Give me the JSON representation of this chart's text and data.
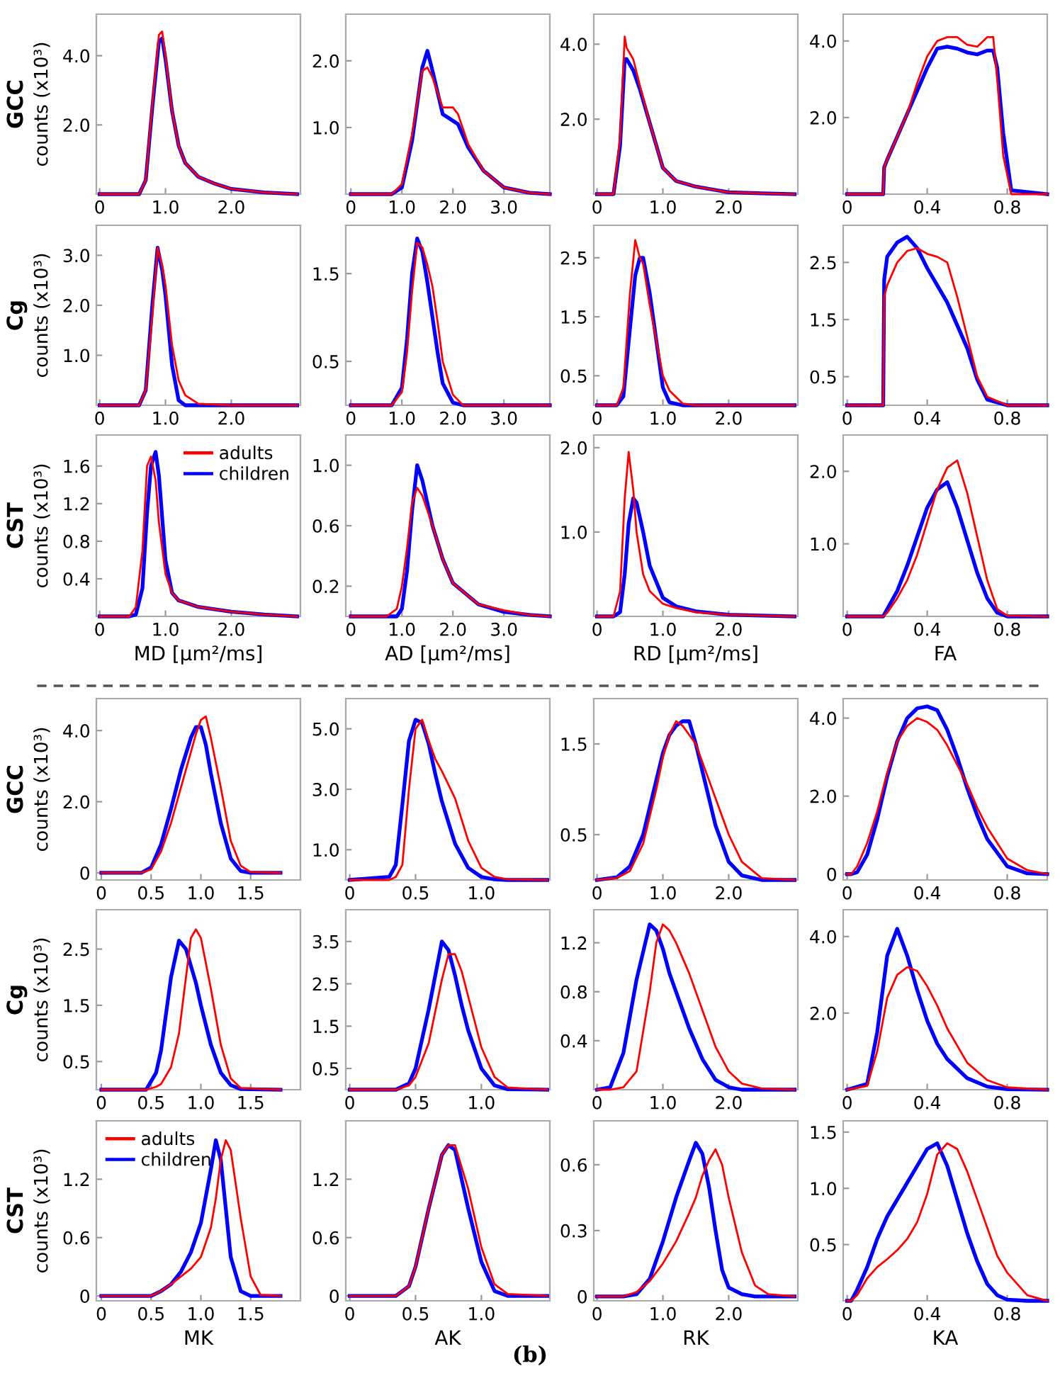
{
  "chart_data": [
    {
      "type": "line",
      "title": "GCC",
      "ylabel": "counts (x10³)",
      "x": [
        0,
        0.6,
        0.7,
        0.8,
        0.9,
        0.95,
        1.0,
        1.1,
        1.2,
        1.3,
        1.5,
        1.75,
        2.0,
        2.5,
        3.0
      ],
      "series": [
        {
          "color": "#ff0000",
          "values": [
            0,
            0,
            0.4,
            2.6,
            4.6,
            4.7,
            4.0,
            2.4,
            1.4,
            0.9,
            0.5,
            0.3,
            0.15,
            0.05,
            0
          ]
        },
        {
          "color": "#0000ff",
          "values": [
            0,
            0,
            0.4,
            2.5,
            4.4,
            4.5,
            3.9,
            2.4,
            1.4,
            0.9,
            0.5,
            0.3,
            0.15,
            0.05,
            0
          ]
        }
      ],
      "xlim": [
        -0.05,
        3.05
      ],
      "ylim": [
        0,
        5.2
      ],
      "xticks": [
        0,
        {
          "value": 1,
          "label": "1.0"
        },
        {
          "value": 2,
          "label": "2.0"
        }
      ],
      "yticks": [
        {
          "value": 2,
          "label": "2.0"
        },
        {
          "value": 4,
          "label": "4.0"
        }
      ]
    },
    {
      "type": "line",
      "x": [
        0,
        0.8,
        1.0,
        1.2,
        1.4,
        1.5,
        1.6,
        1.8,
        1.9,
        2.0,
        2.1,
        2.3,
        2.6,
        3.0,
        3.5,
        3.9
      ],
      "series": [
        {
          "color": "#ff0000",
          "values": [
            0,
            0,
            0.15,
            0.9,
            1.85,
            1.9,
            1.75,
            1.3,
            1.3,
            1.3,
            1.2,
            0.75,
            0.35,
            0.1,
            0.02,
            0
          ]
        },
        {
          "color": "#0000ff",
          "values": [
            0,
            0,
            0.1,
            0.8,
            1.9,
            2.15,
            1.85,
            1.2,
            1.15,
            1.1,
            1.05,
            0.7,
            0.35,
            0.1,
            0.02,
            0
          ]
        }
      ],
      "xlim": [
        -0.1,
        3.9
      ],
      "ylim": [
        0,
        2.7
      ],
      "xticks": [
        0,
        {
          "value": 1,
          "label": "1.0"
        },
        {
          "value": 2,
          "label": "2.0"
        },
        {
          "value": 3,
          "label": "3.0"
        }
      ],
      "yticks": [
        {
          "value": 1,
          "label": "1.0"
        },
        {
          "value": 2,
          "label": "2.0"
        }
      ]
    },
    {
      "type": "line",
      "x": [
        0,
        0.25,
        0.35,
        0.42,
        0.45,
        0.55,
        0.65,
        0.8,
        1.0,
        1.2,
        1.5,
        2.0,
        2.5,
        3.0
      ],
      "series": [
        {
          "color": "#ff0000",
          "values": [
            0,
            0,
            1.5,
            4.2,
            3.9,
            3.6,
            2.9,
            1.9,
            0.7,
            0.35,
            0.2,
            0.05,
            0.02,
            0
          ]
        },
        {
          "color": "#0000ff",
          "values": [
            0,
            0,
            1.3,
            3.6,
            3.6,
            3.3,
            2.8,
            1.9,
            0.7,
            0.35,
            0.2,
            0.05,
            0.02,
            0
          ]
        }
      ],
      "xlim": [
        -0.05,
        3.05
      ],
      "ylim": [
        0,
        4.8
      ],
      "xticks": [
        0,
        {
          "value": 1,
          "label": "1.0"
        },
        {
          "value": 2,
          "label": "2.0"
        }
      ],
      "yticks": [
        {
          "value": 2,
          "label": "2.0"
        },
        {
          "value": 4,
          "label": "4.0"
        }
      ]
    },
    {
      "type": "line",
      "x": [
        0,
        0.18,
        0.185,
        0.2,
        0.25,
        0.3,
        0.35,
        0.4,
        0.45,
        0.5,
        0.55,
        0.6,
        0.65,
        0.7,
        0.73,
        0.75,
        0.78,
        0.82,
        1.0
      ],
      "series": [
        {
          "color": "#ff0000",
          "values": [
            0,
            0,
            0.7,
            0.9,
            1.5,
            2.1,
            2.9,
            3.6,
            4.0,
            4.1,
            4.1,
            3.9,
            3.85,
            4.1,
            4.1,
            3.0,
            1.0,
            0,
            0
          ]
        },
        {
          "color": "#0000ff",
          "values": [
            0,
            0,
            0.7,
            0.9,
            1.5,
            2.1,
            2.7,
            3.3,
            3.8,
            3.85,
            3.8,
            3.7,
            3.65,
            3.75,
            3.75,
            3.3,
            1.6,
            0.1,
            0
          ]
        }
      ],
      "xlim": [
        -0.02,
        1.0
      ],
      "ylim": [
        0,
        4.7
      ],
      "xticks": [
        0,
        0.4,
        0.8
      ],
      "yticks": [
        {
          "value": 2,
          "label": "2.0"
        },
        {
          "value": 4,
          "label": "4.0"
        }
      ]
    },
    {
      "type": "line",
      "title": "Cg",
      "ylabel": "counts (x10³)",
      "x": [
        0,
        0.6,
        0.7,
        0.8,
        0.88,
        0.95,
        1.0,
        1.1,
        1.2,
        1.3,
        1.5,
        2.0,
        3.0
      ],
      "series": [
        {
          "color": "#ff0000",
          "values": [
            0,
            0,
            0.3,
            1.8,
            3.15,
            2.8,
            2.4,
            1.2,
            0.5,
            0.2,
            0.03,
            0,
            0
          ]
        },
        {
          "color": "#0000ff",
          "values": [
            0,
            0,
            0.3,
            2.0,
            3.15,
            2.7,
            2.2,
            0.8,
            0.1,
            0,
            0,
            0,
            0
          ]
        }
      ],
      "xlim": [
        -0.05,
        3.05
      ],
      "ylim": [
        0,
        3.6
      ],
      "xticks": [
        0,
        {
          "value": 1,
          "label": "1.0"
        },
        {
          "value": 2,
          "label": "2.0"
        }
      ],
      "yticks": [
        {
          "value": 1,
          "label": "1.0"
        },
        {
          "value": 2,
          "label": "2.0"
        },
        {
          "value": 3,
          "label": "3.0"
        }
      ]
    },
    {
      "type": "line",
      "x": [
        0,
        0.8,
        1.0,
        1.1,
        1.2,
        1.3,
        1.4,
        1.5,
        1.6,
        1.7,
        1.8,
        2.0,
        2.2,
        3.9
      ],
      "series": [
        {
          "color": "#ff0000",
          "values": [
            0,
            0,
            0.15,
            0.6,
            1.3,
            1.85,
            1.8,
            1.6,
            1.35,
            0.95,
            0.5,
            0.12,
            0,
            0
          ]
        },
        {
          "color": "#0000ff",
          "values": [
            0,
            0,
            0.2,
            0.75,
            1.5,
            1.9,
            1.75,
            1.4,
            1.0,
            0.6,
            0.25,
            0.03,
            0,
            0
          ]
        }
      ],
      "xlim": [
        -0.1,
        3.9
      ],
      "ylim": [
        0,
        2.05
      ],
      "xticks": [
        0,
        {
          "value": 1,
          "label": "1.0"
        },
        {
          "value": 2,
          "label": "2.0"
        },
        {
          "value": 3,
          "label": "3.0"
        }
      ],
      "yticks": [
        0.5,
        1.5
      ]
    },
    {
      "type": "line",
      "x": [
        0,
        0.3,
        0.4,
        0.5,
        0.58,
        0.65,
        0.7,
        0.8,
        0.9,
        1.0,
        1.1,
        1.3,
        1.5,
        3.0
      ],
      "series": [
        {
          "color": "#ff0000",
          "values": [
            0,
            0,
            0.3,
            1.9,
            2.8,
            2.5,
            2.4,
            1.7,
            1.1,
            0.5,
            0.25,
            0.03,
            0,
            0
          ]
        },
        {
          "color": "#0000ff",
          "values": [
            0,
            0,
            0.15,
            1.3,
            2.2,
            2.5,
            2.5,
            1.9,
            1.1,
            0.3,
            0.05,
            0,
            0,
            0
          ]
        }
      ],
      "xlim": [
        -0.05,
        3.05
      ],
      "ylim": [
        0,
        3.05
      ],
      "xticks": [
        0,
        {
          "value": 1,
          "label": "1.0"
        },
        {
          "value": 2,
          "label": "2.0"
        }
      ],
      "yticks": [
        0.5,
        1.5,
        2.5
      ]
    },
    {
      "type": "line",
      "x": [
        0,
        0.18,
        0.185,
        0.2,
        0.25,
        0.3,
        0.35,
        0.4,
        0.45,
        0.5,
        0.55,
        0.6,
        0.65,
        0.7,
        0.8,
        1.0
      ],
      "series": [
        {
          "color": "#ff0000",
          "values": [
            0,
            0,
            1.9,
            2.1,
            2.5,
            2.7,
            2.75,
            2.65,
            2.6,
            2.5,
            1.9,
            1.2,
            0.5,
            0.15,
            0,
            0
          ]
        },
        {
          "color": "#0000ff",
          "values": [
            0,
            0,
            2.2,
            2.6,
            2.85,
            2.95,
            2.75,
            2.4,
            2.1,
            1.8,
            1.4,
            1.0,
            0.45,
            0.1,
            0,
            0
          ]
        }
      ],
      "xlim": [
        -0.02,
        1.0
      ],
      "ylim": [
        0,
        3.15
      ],
      "xticks": [
        0,
        0.4,
        0.8
      ],
      "yticks": [
        0.5,
        1.5,
        2.5
      ]
    },
    {
      "type": "line",
      "title": "CST",
      "ylabel": "counts (x10³)",
      "xlabel": "MD [µm²/ms]",
      "legend": "top right",
      "x": [
        0,
        0.45,
        0.55,
        0.65,
        0.72,
        0.78,
        0.85,
        0.9,
        1.0,
        1.1,
        1.2,
        1.5,
        2.0,
        2.5,
        3.0
      ],
      "series": [
        {
          "name": "adults",
          "color": "#ff0000",
          "values": [
            0,
            0,
            0.1,
            0.7,
            1.6,
            1.7,
            1.45,
            1.0,
            0.45,
            0.25,
            0.17,
            0.1,
            0.05,
            0.02,
            0
          ]
        },
        {
          "name": "children",
          "color": "#0000ff",
          "values": [
            0,
            0,
            0.02,
            0.3,
            1.1,
            1.6,
            1.75,
            1.5,
            0.6,
            0.25,
            0.17,
            0.1,
            0.05,
            0.02,
            0
          ]
        }
      ],
      "xlim": [
        -0.05,
        3.05
      ],
      "ylim": [
        0,
        1.93
      ],
      "xticks": [
        0,
        {
          "value": 1,
          "label": "1.0"
        },
        {
          "value": 2,
          "label": "2.0"
        }
      ],
      "yticks": [
        0.4,
        0.8,
        1.2,
        1.6
      ]
    },
    {
      "type": "line",
      "xlabel": "AD [µm²/ms]",
      "x": [
        0,
        0.7,
        0.9,
        1.0,
        1.1,
        1.2,
        1.3,
        1.4,
        1.5,
        1.6,
        1.8,
        2.0,
        2.5,
        3.0,
        3.5,
        3.9
      ],
      "series": [
        {
          "color": "#ff0000",
          "values": [
            0,
            0,
            0.05,
            0.2,
            0.45,
            0.75,
            0.85,
            0.8,
            0.7,
            0.6,
            0.38,
            0.22,
            0.08,
            0.04,
            0.01,
            0
          ]
        },
        {
          "color": "#0000ff",
          "values": [
            0,
            0,
            0,
            0.05,
            0.3,
            0.7,
            1.0,
            0.9,
            0.75,
            0.6,
            0.38,
            0.22,
            0.08,
            0.03,
            0.01,
            0
          ]
        }
      ],
      "xlim": [
        -0.1,
        3.9
      ],
      "ylim": [
        0,
        1.2
      ],
      "xticks": [
        0,
        {
          "value": 1,
          "label": "1.0"
        },
        {
          "value": 2,
          "label": "2.0"
        },
        {
          "value": 3,
          "label": "3.0"
        }
      ],
      "yticks": [
        0.2,
        0.6,
        {
          "value": 1,
          "label": "1.0"
        }
      ]
    },
    {
      "type": "line",
      "xlabel": "RD [µm²/ms]",
      "x": [
        0,
        0.25,
        0.35,
        0.42,
        0.48,
        0.55,
        0.6,
        0.7,
        0.8,
        1.0,
        1.2,
        1.5,
        2.0,
        2.5,
        3.0
      ],
      "series": [
        {
          "color": "#ff0000",
          "values": [
            0,
            0,
            0.3,
            1.4,
            1.95,
            1.5,
            1.0,
            0.5,
            0.3,
            0.15,
            0.1,
            0.05,
            0.02,
            0.01,
            0
          ]
        },
        {
          "color": "#0000ff",
          "values": [
            0,
            0,
            0.05,
            0.5,
            1.1,
            1.4,
            1.35,
            1.0,
            0.6,
            0.22,
            0.12,
            0.06,
            0.02,
            0.01,
            0
          ]
        }
      ],
      "xlim": [
        -0.05,
        3.05
      ],
      "ylim": [
        0,
        2.15
      ],
      "xticks": [
        0,
        {
          "value": 1,
          "label": "1.0"
        },
        {
          "value": 2,
          "label": "2.0"
        }
      ],
      "yticks": [
        {
          "value": 1,
          "label": "1.0"
        },
        {
          "value": 2,
          "label": "2.0"
        }
      ]
    },
    {
      "type": "line",
      "xlabel": "FA",
      "x": [
        0,
        0.18,
        0.2,
        0.25,
        0.3,
        0.35,
        0.4,
        0.45,
        0.5,
        0.55,
        0.6,
        0.65,
        0.7,
        0.75,
        0.8,
        1.0
      ],
      "series": [
        {
          "color": "#ff0000",
          "values": [
            0,
            0,
            0.05,
            0.25,
            0.5,
            0.85,
            1.3,
            1.75,
            2.05,
            2.15,
            1.7,
            1.1,
            0.5,
            0.1,
            0.01,
            0
          ]
        },
        {
          "color": "#0000ff",
          "values": [
            0,
            0,
            0.1,
            0.35,
            0.7,
            1.1,
            1.5,
            1.75,
            1.85,
            1.5,
            1.05,
            0.6,
            0.25,
            0.05,
            0,
            0
          ]
        }
      ],
      "xlim": [
        -0.02,
        1.0
      ],
      "ylim": [
        0,
        2.5
      ],
      "xticks": [
        0,
        0.4,
        0.8
      ],
      "yticks": [
        {
          "value": 1,
          "label": "1.0"
        },
        {
          "value": 2,
          "label": "2.0"
        }
      ]
    },
    {
      "type": "line",
      "title": "GCC",
      "ylabel": "counts (x10³)",
      "x": [
        0,
        0.4,
        0.5,
        0.6,
        0.7,
        0.8,
        0.9,
        0.95,
        1.0,
        1.05,
        1.1,
        1.2,
        1.3,
        1.4,
        1.5,
        1.8
      ],
      "series": [
        {
          "color": "#ff0000",
          "values": [
            0,
            0,
            0.1,
            0.6,
            1.4,
            2.4,
            3.4,
            3.9,
            4.3,
            4.4,
            3.8,
            2.4,
            0.9,
            0.2,
            0.02,
            0
          ]
        },
        {
          "color": "#0000ff",
          "values": [
            0,
            0,
            0.15,
            0.8,
            1.8,
            2.9,
            3.8,
            4.1,
            4.1,
            3.6,
            2.8,
            1.4,
            0.4,
            0.05,
            0,
            0
          ]
        }
      ],
      "xlim": [
        -0.05,
        2.0
      ],
      "ylim": [
        -0.2,
        4.9
      ],
      "xticks": [
        0,
        0.5,
        {
          "value": 1,
          "label": "1.0"
        },
        1.5
      ],
      "yticks": [
        0,
        {
          "value": 2,
          "label": "2.0"
        },
        {
          "value": 4,
          "label": "4.0"
        }
      ]
    },
    {
      "type": "line",
      "x": [
        0,
        0.3,
        0.35,
        0.4,
        0.45,
        0.5,
        0.55,
        0.6,
        0.65,
        0.7,
        0.8,
        0.9,
        1.0,
        1.1,
        1.2,
        1.5
      ],
      "series": [
        {
          "color": "#ff0000",
          "values": [
            0,
            0,
            0.1,
            0.5,
            3.0,
            5.0,
            5.3,
            4.6,
            4.0,
            3.6,
            2.7,
            1.3,
            0.4,
            0.1,
            0.02,
            0
          ]
        },
        {
          "color": "#0000ff",
          "values": [
            0,
            0.1,
            0.5,
            2.5,
            4.6,
            5.3,
            5.2,
            4.5,
            3.5,
            2.6,
            1.2,
            0.4,
            0.1,
            0.02,
            0,
            0
          ]
        }
      ],
      "xlim": [
        -0.03,
        1.52
      ],
      "ylim": [
        0,
        6.0
      ],
      "xticks": [
        0,
        0.5,
        {
          "value": 1,
          "label": "1.0"
        }
      ],
      "yticks": [
        {
          "value": 1,
          "label": "1.0"
        },
        {
          "value": 3,
          "label": "3.0"
        },
        {
          "value": 5,
          "label": "5.0"
        }
      ]
    },
    {
      "type": "line",
      "x": [
        0,
        0.3,
        0.5,
        0.7,
        0.9,
        1.0,
        1.1,
        1.2,
        1.3,
        1.4,
        1.5,
        1.6,
        1.8,
        2.0,
        2.2,
        2.5,
        3.0
      ],
      "series": [
        {
          "color": "#ff0000",
          "values": [
            0,
            0.02,
            0.1,
            0.4,
            1.0,
            1.35,
            1.6,
            1.75,
            1.7,
            1.6,
            1.5,
            1.3,
            0.9,
            0.5,
            0.2,
            0.02,
            0
          ]
        },
        {
          "color": "#0000ff",
          "values": [
            0,
            0.03,
            0.15,
            0.5,
            1.1,
            1.4,
            1.6,
            1.7,
            1.75,
            1.75,
            1.5,
            1.2,
            0.6,
            0.2,
            0.05,
            0,
            0
          ]
        }
      ],
      "xlim": [
        -0.05,
        3.05
      ],
      "ylim": [
        0,
        2.0
      ],
      "xticks": [
        0,
        {
          "value": 1,
          "label": "1.0"
        },
        {
          "value": 2,
          "label": "2.0"
        }
      ],
      "yticks": [
        0.5,
        1.5
      ]
    },
    {
      "type": "line",
      "x": [
        0,
        0.02,
        0.05,
        0.1,
        0.15,
        0.2,
        0.25,
        0.3,
        0.35,
        0.4,
        0.45,
        0.5,
        0.55,
        0.6,
        0.65,
        0.7,
        0.8,
        0.9,
        1.0
      ],
      "series": [
        {
          "color": "#ff0000",
          "values": [
            0,
            0,
            0.2,
            0.8,
            1.6,
            2.6,
            3.4,
            3.8,
            4.0,
            3.9,
            3.7,
            3.3,
            2.8,
            2.3,
            1.7,
            1.2,
            0.4,
            0.1,
            0
          ]
        },
        {
          "color": "#0000ff",
          "values": [
            0,
            0,
            0.05,
            0.5,
            1.4,
            2.5,
            3.4,
            4.0,
            4.25,
            4.3,
            4.2,
            3.7,
            3.0,
            2.2,
            1.5,
            0.9,
            0.2,
            0.02,
            0
          ]
        }
      ],
      "xlim": [
        -0.02,
        1.0
      ],
      "ylim": [
        -0.15,
        4.5
      ],
      "xticks": [
        0,
        0.4,
        0.8
      ],
      "yticks": [
        0,
        {
          "value": 2,
          "label": "2.0"
        },
        {
          "value": 4,
          "label": "4.0"
        }
      ]
    },
    {
      "type": "line",
      "title": "Cg",
      "ylabel": "counts (x10³)",
      "x": [
        0,
        0.45,
        0.55,
        0.6,
        0.7,
        0.78,
        0.85,
        0.9,
        0.95,
        1.0,
        1.1,
        1.2,
        1.3,
        1.4,
        1.8
      ],
      "series": [
        {
          "color": "#ff0000",
          "values": [
            0,
            0,
            0.05,
            0.1,
            0.4,
            1.0,
            2.0,
            2.7,
            2.85,
            2.7,
            1.8,
            0.8,
            0.2,
            0.03,
            0
          ]
        },
        {
          "color": "#0000ff",
          "values": [
            0,
            0,
            0.3,
            0.7,
            2.0,
            2.65,
            2.5,
            2.2,
            1.9,
            1.5,
            0.8,
            0.3,
            0.08,
            0.01,
            0
          ]
        }
      ],
      "xlim": [
        -0.05,
        2.0
      ],
      "ylim": [
        0,
        3.2
      ],
      "xticks": [
        0,
        0.5,
        {
          "value": 1,
          "label": "1.0"
        },
        1.5
      ],
      "yticks": [
        0.5,
        1.5,
        2.5
      ]
    },
    {
      "type": "line",
      "x": [
        0,
        0.35,
        0.45,
        0.5,
        0.6,
        0.7,
        0.75,
        0.8,
        0.85,
        0.9,
        1.0,
        1.1,
        1.2,
        1.5
      ],
      "series": [
        {
          "color": "#ff0000",
          "values": [
            0,
            0,
            0.1,
            0.3,
            1.1,
            2.6,
            3.2,
            3.2,
            2.8,
            2.2,
            1.0,
            0.3,
            0.05,
            0
          ]
        },
        {
          "color": "#0000ff",
          "values": [
            0,
            0,
            0.15,
            0.5,
            1.9,
            3.5,
            3.3,
            2.7,
            2.0,
            1.4,
            0.5,
            0.1,
            0.01,
            0
          ]
        }
      ],
      "xlim": [
        -0.03,
        1.52
      ],
      "ylim": [
        0,
        4.25
      ],
      "xticks": [
        0,
        0.5,
        {
          "value": 1,
          "label": "1.0"
        }
      ],
      "yticks": [
        0.5,
        1.5,
        2.5,
        3.5
      ]
    },
    {
      "type": "line",
      "x": [
        0,
        0.2,
        0.4,
        0.6,
        0.8,
        0.9,
        1.0,
        1.1,
        1.2,
        1.4,
        1.6,
        1.8,
        2.0,
        2.2,
        2.5,
        3.0
      ],
      "series": [
        {
          "color": "#ff0000",
          "values": [
            0,
            0,
            0.02,
            0.15,
            0.8,
            1.2,
            1.35,
            1.3,
            1.2,
            0.95,
            0.65,
            0.35,
            0.15,
            0.05,
            0.01,
            0
          ]
        },
        {
          "color": "#0000ff",
          "values": [
            0,
            0.02,
            0.3,
            0.9,
            1.35,
            1.3,
            1.15,
            0.95,
            0.8,
            0.5,
            0.25,
            0.08,
            0.02,
            0,
            0,
            0
          ]
        }
      ],
      "xlim": [
        -0.05,
        3.05
      ],
      "ylim": [
        0,
        1.47
      ],
      "xticks": [
        0,
        {
          "value": 1,
          "label": "1.0"
        },
        {
          "value": 2,
          "label": "2.0"
        }
      ],
      "yticks": [
        0.4,
        0.8,
        1.2
      ]
    },
    {
      "type": "line",
      "x": [
        0,
        0.1,
        0.15,
        0.2,
        0.25,
        0.3,
        0.35,
        0.4,
        0.45,
        0.5,
        0.6,
        0.7,
        0.8,
        1.0
      ],
      "series": [
        {
          "color": "#ff0000",
          "values": [
            0,
            0.1,
            1.0,
            2.4,
            3.0,
            3.2,
            3.1,
            2.7,
            2.2,
            1.6,
            0.7,
            0.25,
            0.06,
            0
          ]
        },
        {
          "color": "#0000ff",
          "values": [
            0,
            0.15,
            1.5,
            3.5,
            4.2,
            3.5,
            2.6,
            1.8,
            1.2,
            0.8,
            0.3,
            0.08,
            0.01,
            0
          ]
        }
      ],
      "xlim": [
        -0.02,
        1.0
      ],
      "ylim": [
        0,
        4.7
      ],
      "xticks": [
        0,
        0.4,
        0.8
      ],
      "yticks": [
        {
          "value": 2,
          "label": "2.0"
        },
        {
          "value": 4,
          "label": "4.0"
        }
      ]
    },
    {
      "type": "line",
      "title": "CST",
      "ylabel": "counts (x10³)",
      "xlabel": "MK",
      "legend": "top left",
      "x": [
        0,
        0.5,
        0.6,
        0.7,
        0.8,
        0.9,
        1.0,
        1.1,
        1.15,
        1.2,
        1.25,
        1.3,
        1.4,
        1.5,
        1.6,
        1.8
      ],
      "series": [
        {
          "name": "adults",
          "color": "#ff0000",
          "values": [
            0,
            0,
            0.05,
            0.12,
            0.2,
            0.28,
            0.4,
            0.7,
            1.0,
            1.4,
            1.6,
            1.5,
            0.8,
            0.2,
            0.01,
            0
          ]
        },
        {
          "name": "children",
          "color": "#0000ff",
          "values": [
            0,
            0,
            0.05,
            0.12,
            0.25,
            0.45,
            0.75,
            1.3,
            1.6,
            1.4,
            0.9,
            0.4,
            0.05,
            0,
            0,
            0
          ]
        }
      ],
      "xlim": [
        -0.05,
        2.0
      ],
      "ylim": [
        -0.05,
        1.8
      ],
      "xticks": [
        0,
        0.5,
        {
          "value": 1,
          "label": "1.0"
        },
        1.5
      ],
      "yticks": [
        0,
        0.6,
        1.2
      ]
    },
    {
      "type": "line",
      "xlabel": "AK",
      "x": [
        0,
        0.35,
        0.45,
        0.5,
        0.6,
        0.7,
        0.75,
        0.8,
        0.9,
        1.0,
        1.1,
        1.2,
        1.5
      ],
      "series": [
        {
          "color": "#ff0000",
          "values": [
            0,
            0,
            0.1,
            0.3,
            0.9,
            1.45,
            1.55,
            1.55,
            1.1,
            0.5,
            0.12,
            0.02,
            0
          ]
        },
        {
          "color": "#0000ff",
          "values": [
            0,
            0,
            0.1,
            0.3,
            0.9,
            1.45,
            1.55,
            1.5,
            0.9,
            0.35,
            0.05,
            0,
            0
          ]
        }
      ],
      "xlim": [
        -0.03,
        1.52
      ],
      "ylim": [
        -0.05,
        1.8
      ],
      "xticks": [
        0,
        0.5,
        {
          "value": 1,
          "label": "1.0"
        }
      ],
      "yticks": [
        0,
        0.6,
        1.2
      ]
    },
    {
      "type": "line",
      "xlabel": "RK",
      "x": [
        0,
        0.4,
        0.6,
        0.8,
        1.0,
        1.2,
        1.4,
        1.5,
        1.6,
        1.7,
        1.8,
        1.9,
        2.0,
        2.2,
        2.4,
        2.6,
        3.0
      ],
      "series": [
        {
          "color": "#ff0000",
          "values": [
            0,
            0,
            0.02,
            0.07,
            0.15,
            0.25,
            0.38,
            0.45,
            0.55,
            0.62,
            0.67,
            0.6,
            0.45,
            0.2,
            0.05,
            0.01,
            0
          ]
        },
        {
          "color": "#0000ff",
          "values": [
            0,
            0,
            0.01,
            0.08,
            0.25,
            0.45,
            0.62,
            0.7,
            0.65,
            0.5,
            0.3,
            0.12,
            0.04,
            0.01,
            0,
            0,
            0
          ]
        }
      ],
      "xlim": [
        -0.05,
        3.05
      ],
      "ylim": [
        -0.02,
        0.8
      ],
      "xticks": [
        0,
        {
          "value": 1,
          "label": "1.0"
        },
        {
          "value": 2,
          "label": "2.0"
        }
      ],
      "yticks": [
        0,
        0.3,
        0.6
      ]
    },
    {
      "type": "line",
      "xlabel": "KA",
      "annotations": [
        "(b)"
      ],
      "x": [
        0,
        0.02,
        0.05,
        0.1,
        0.15,
        0.2,
        0.25,
        0.3,
        0.35,
        0.4,
        0.45,
        0.5,
        0.55,
        0.6,
        0.65,
        0.7,
        0.75,
        0.8,
        0.9,
        1.0
      ],
      "series": [
        {
          "color": "#ff0000",
          "values": [
            0,
            0,
            0.05,
            0.2,
            0.3,
            0.37,
            0.45,
            0.55,
            0.7,
            0.95,
            1.3,
            1.4,
            1.35,
            1.15,
            0.9,
            0.65,
            0.4,
            0.25,
            0.05,
            0
          ]
        },
        {
          "color": "#0000ff",
          "values": [
            0,
            0,
            0.1,
            0.3,
            0.55,
            0.75,
            0.9,
            1.05,
            1.2,
            1.35,
            1.4,
            1.2,
            0.9,
            0.6,
            0.35,
            0.15,
            0.05,
            0.01,
            0,
            0
          ]
        }
      ],
      "xlim": [
        -0.02,
        1.0
      ],
      "ylim": [
        0,
        1.6
      ],
      "xticks": [
        0,
        0.4,
        0.8
      ],
      "yticks": [
        0.5,
        {
          "value": 1,
          "label": "1.0"
        },
        1.5
      ]
    }
  ]
}
